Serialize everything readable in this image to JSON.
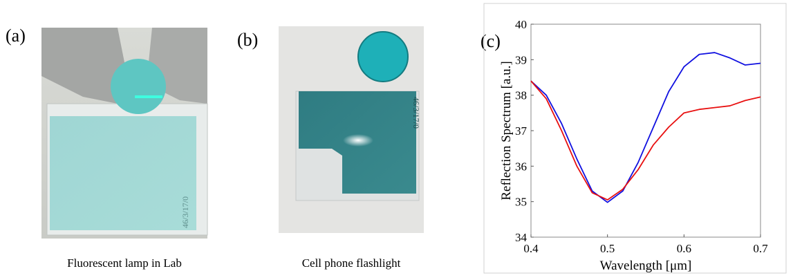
{
  "panels": [
    {
      "label": "(a)",
      "caption": "Fluorescent lamp in Lab",
      "stamp": "46/3/17/0"
    },
    {
      "label": "(b)",
      "caption": "Cell phone flashlight",
      "stamp": "46/3/17/0"
    },
    {
      "label": "(c)"
    }
  ],
  "chart_data": {
    "type": "line",
    "xlabel": "Wavelength [μm]",
    "ylabel": "Reflection Spectrum [a.u.]",
    "x": [
      0.4,
      0.42,
      0.44,
      0.46,
      0.48,
      0.5,
      0.52,
      0.54,
      0.56,
      0.58,
      0.6,
      0.62,
      0.64,
      0.66,
      0.68,
      0.7
    ],
    "series": [
      {
        "color": "#1010e0",
        "values": [
          38.4,
          38.0,
          37.2,
          36.2,
          35.3,
          34.98,
          35.3,
          36.1,
          37.1,
          38.1,
          38.8,
          39.15,
          39.2,
          39.05,
          38.85,
          38.9
        ]
      },
      {
        "color": "#e81010",
        "values": [
          38.4,
          37.9,
          37.0,
          36.0,
          35.25,
          35.05,
          35.35,
          35.9,
          36.6,
          37.1,
          37.5,
          37.6,
          37.65,
          37.7,
          37.85,
          37.95
        ]
      }
    ],
    "xlim": [
      0.4,
      0.7
    ],
    "ylim": [
      34,
      40
    ],
    "xticks": [
      0.4,
      0.5,
      0.6,
      0.7
    ],
    "yticks": [
      34,
      35,
      36,
      37,
      38,
      39,
      40
    ],
    "grid": false
  }
}
